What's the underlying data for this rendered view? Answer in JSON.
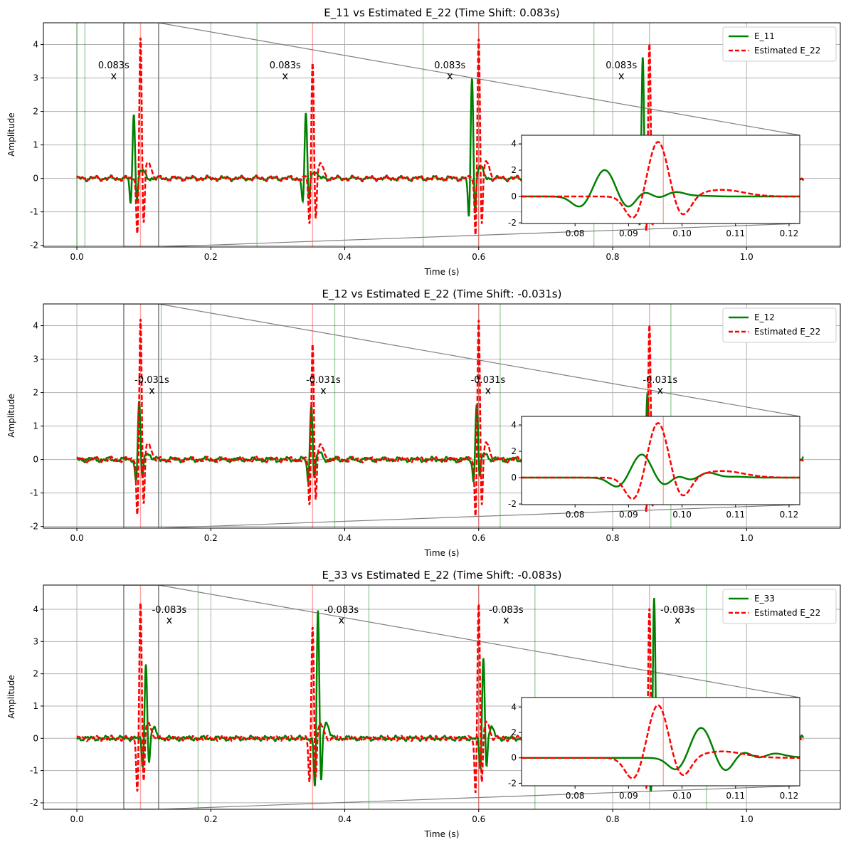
{
  "colors": {
    "e22_line": "#ff0000",
    "signal_line": "#008000",
    "grid": "#b0b0b0",
    "red_marker": "#ff0000",
    "green_marker": "#008000",
    "zoom_box": "#808080"
  },
  "chart_data": [
    {
      "type": "line",
      "title": "E_11 vs Estimated E_22 (Time Shift: 0.083s)",
      "xlabel": "Time (s)",
      "ylabel": "Amplitude",
      "xlim": [
        -0.05,
        1.14
      ],
      "ylim": [
        -2.05,
        4.65
      ],
      "xticks": [
        "0.0",
        "0.2",
        "0.4",
        "0.6",
        "0.8",
        "1.0"
      ],
      "yticks": [
        "-2",
        "-1",
        "0",
        "1",
        "2",
        "3",
        "4"
      ],
      "grid": true,
      "legend_position": "top-right",
      "legend": [
        "E_11",
        "Estimated E_22"
      ],
      "time_shift": 0.083,
      "signal_name": "E_11",
      "e22_peaks": [
        {
          "t": 0.095,
          "amp": 4.25
        },
        {
          "t": 0.352,
          "amp": 3.55
        },
        {
          "t": 0.6,
          "amp": 4.3
        },
        {
          "t": 0.855,
          "amp": 4.1
        }
      ],
      "signal_peaks": [
        {
          "t": 0.085,
          "amp": 1.98
        },
        {
          "t": 0.342,
          "amp": 1.95
        },
        {
          "t": 0.59,
          "amp": 3.1
        },
        {
          "t": 0.845,
          "amp": 3.65
        }
      ],
      "red_markers": [
        0.095,
        0.352,
        0.6,
        0.855
      ],
      "green_markers": [
        0.0,
        0.012,
        0.269,
        0.517,
        0.772
      ],
      "annotations": [
        {
          "t": 0.055,
          "y": 3.05,
          "label": "0.083s"
        },
        {
          "t": 0.311,
          "y": 3.05,
          "label": "0.083s"
        },
        {
          "t": 0.557,
          "y": 3.05,
          "label": "0.083s"
        },
        {
          "t": 0.813,
          "y": 3.05,
          "label": "0.083s"
        }
      ],
      "inset": {
        "xlim": [
          0.07,
          0.122
        ],
        "ylim": [
          -2.05,
          4.65
        ],
        "xticks": [
          "0.08",
          "0.09",
          "0.10",
          "0.11",
          "0.12"
        ],
        "yticks": [
          "-2",
          "0",
          "2",
          "4"
        ],
        "red_marker": 0.0965,
        "e22_peak": {
          "t": 0.0955,
          "amp": 4.2
        },
        "signal_peak": {
          "t": 0.0855,
          "amp": 1.98
        }
      }
    },
    {
      "type": "line",
      "title": "E_12 vs Estimated E_22 (Time Shift: -0.031s)",
      "xlabel": "Time (s)",
      "ylabel": "Amplitude",
      "xlim": [
        -0.05,
        1.14
      ],
      "ylim": [
        -2.05,
        4.65
      ],
      "xticks": [
        "0.0",
        "0.2",
        "0.4",
        "0.6",
        "0.8",
        "1.0"
      ],
      "yticks": [
        "-2",
        "-1",
        "0",
        "1",
        "2",
        "3",
        "4"
      ],
      "grid": true,
      "legend_position": "top-right",
      "legend": [
        "E_12",
        "Estimated E_22"
      ],
      "time_shift": -0.031,
      "signal_name": "E_12",
      "e22_peaks": [
        {
          "t": 0.095,
          "amp": 4.25
        },
        {
          "t": 0.352,
          "amp": 3.55
        },
        {
          "t": 0.6,
          "amp": 4.3
        },
        {
          "t": 0.855,
          "amp": 4.1
        }
      ],
      "signal_peaks": [
        {
          "t": 0.093,
          "amp": 1.75
        },
        {
          "t": 0.35,
          "amp": 1.7
        },
        {
          "t": 0.597,
          "amp": 1.7
        },
        {
          "t": 0.852,
          "amp": 2.0
        }
      ],
      "red_markers": [
        0.095,
        0.352,
        0.6,
        0.855
      ],
      "green_markers": [
        0.126,
        0.385,
        0.632,
        0.887
      ],
      "annotations": [
        {
          "t": 0.112,
          "y": 2.05,
          "label": "-0.031s"
        },
        {
          "t": 0.368,
          "y": 2.05,
          "label": "-0.031s"
        },
        {
          "t": 0.614,
          "y": 2.05,
          "label": "-0.031s"
        },
        {
          "t": 0.871,
          "y": 2.05,
          "label": "-0.031s"
        }
      ],
      "inset": {
        "xlim": [
          0.07,
          0.122
        ],
        "ylim": [
          -2.05,
          4.65
        ],
        "xticks": [
          "0.08",
          "0.09",
          "0.10",
          "0.11",
          "0.12"
        ],
        "yticks": [
          "-2",
          "0",
          "2",
          "4"
        ],
        "red_marker": 0.0965,
        "e22_peak": {
          "t": 0.0955,
          "amp": 4.2
        },
        "signal_peak": {
          "t": 0.0925,
          "amp": 1.75
        }
      }
    },
    {
      "type": "line",
      "title": "E_33 vs Estimated E_22 (Time Shift: -0.083s)",
      "xlabel": "Time (s)",
      "ylabel": "Amplitude",
      "xlim": [
        -0.05,
        1.14
      ],
      "ylim": [
        -2.2,
        4.75
      ],
      "xticks": [
        "0.0",
        "0.2",
        "0.4",
        "0.6",
        "0.8",
        "1.0"
      ],
      "yticks": [
        "-2",
        "-1",
        "0",
        "1",
        "2",
        "3",
        "4"
      ],
      "grid": true,
      "legend_position": "top-right",
      "legend": [
        "E_33",
        "Estimated E_22"
      ],
      "time_shift": -0.083,
      "signal_name": "E_33",
      "e22_peaks": [
        {
          "t": 0.095,
          "amp": 4.25
        },
        {
          "t": 0.352,
          "amp": 3.55
        },
        {
          "t": 0.6,
          "amp": 4.3
        },
        {
          "t": 0.855,
          "amp": 4.1
        }
      ],
      "signal_peaks": [
        {
          "t": 0.103,
          "amp": 2.35
        },
        {
          "t": 0.36,
          "amp": 4.0
        },
        {
          "t": 0.607,
          "amp": 2.55
        },
        {
          "t": 0.862,
          "amp": 4.4
        }
      ],
      "red_markers": [
        0.095,
        0.352,
        0.6,
        0.855
      ],
      "green_markers": [
        0.181,
        0.436,
        0.684,
        0.94
      ],
      "annotations": [
        {
          "t": 0.138,
          "y": 3.65,
          "label": "-0.083s"
        },
        {
          "t": 0.395,
          "y": 3.65,
          "label": "-0.083s"
        },
        {
          "t": 0.641,
          "y": 3.65,
          "label": "-0.083s"
        },
        {
          "t": 0.897,
          "y": 3.65,
          "label": "-0.083s"
        }
      ],
      "inset": {
        "xlim": [
          0.07,
          0.122
        ],
        "ylim": [
          -2.2,
          4.75
        ],
        "xticks": [
          "0.08",
          "0.09",
          "0.10",
          "0.11",
          "0.12"
        ],
        "yticks": [
          "-2",
          "0",
          "2",
          "4"
        ],
        "red_marker": 0.0965,
        "e22_peak": {
          "t": 0.0955,
          "amp": 4.2
        },
        "signal_peak": {
          "t": 0.1035,
          "amp": 2.35
        }
      }
    }
  ]
}
